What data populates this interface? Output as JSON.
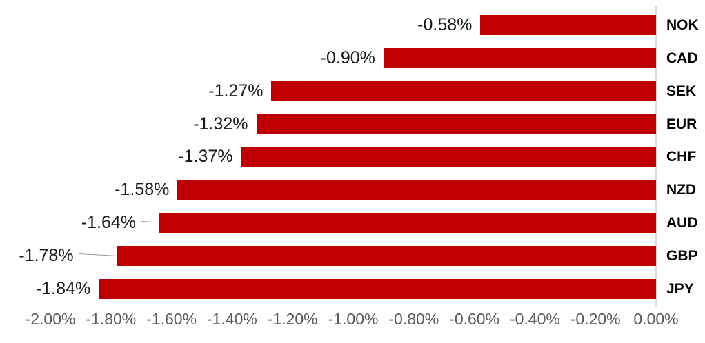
{
  "chart_data": {
    "type": "bar",
    "orientation": "horizontal",
    "categories": [
      "NOK",
      "CAD",
      "SEK",
      "EUR",
      "CHF",
      "NZD",
      "AUD",
      "GBP",
      "JPY"
    ],
    "values": [
      -0.58,
      -0.9,
      -1.27,
      -1.32,
      -1.37,
      -1.58,
      -1.64,
      -1.78,
      -1.84
    ],
    "data_labels": [
      "-0.58%",
      "-0.90%",
      "-1.27%",
      "-1.32%",
      "-1.37%",
      "-1.58%",
      "-1.64%",
      "-1.78%",
      "-1.84%"
    ],
    "x_tick_labels": [
      "-2.00%",
      "-1.80%",
      "-1.60%",
      "-1.40%",
      "-1.20%",
      "-1.00%",
      "-0.80%",
      "-0.60%",
      "-0.40%",
      "-0.20%",
      "0.00%"
    ],
    "x_tick_values": [
      -2.0,
      -1.8,
      -1.6,
      -1.4,
      -1.2,
      -1.0,
      -0.8,
      -0.6,
      -0.4,
      -0.2,
      0.0
    ],
    "xlim": [
      -2.0,
      0.0
    ],
    "value_unit": "%",
    "grid": false,
    "legend": false,
    "bar_color": "#C00000",
    "data_label_color": "#1a1a1a",
    "category_label_color": "#000000",
    "axis_tick_color": "#595959",
    "axis_line_color": "#D9D9D9",
    "leader_line_color": "#999999",
    "leader_line_categories": [
      "AUD",
      "GBP"
    ]
  }
}
